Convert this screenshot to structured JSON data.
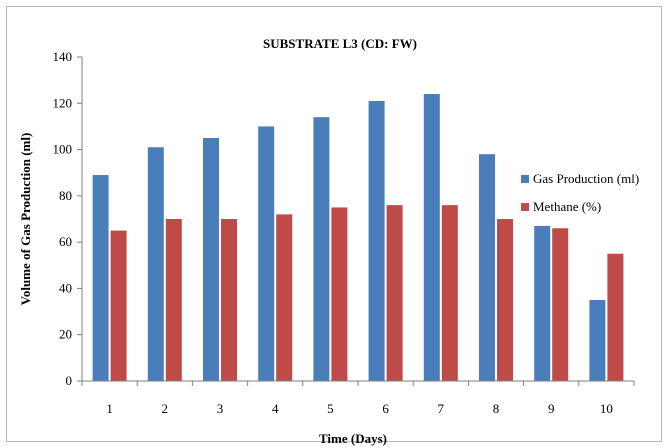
{
  "chart_data": {
    "type": "bar",
    "title": "SUBSTRATE L3 (CD: FW)",
    "xlabel": "Time (Days)",
    "ylabel": "Volume of Gas Production (ml)",
    "categories": [
      "1",
      "2",
      "3",
      "4",
      "5",
      "6",
      "7",
      "8",
      "9",
      "10"
    ],
    "ylim": [
      0,
      140
    ],
    "yticks": [
      "0",
      "20",
      "40",
      "60",
      "80",
      "100",
      "120",
      "140"
    ],
    "grid": false,
    "legend_position": "right",
    "series": [
      {
        "name": "Gas Production (ml)",
        "color": "#4a7ebb",
        "values": [
          89,
          101,
          105,
          110,
          114,
          121,
          124,
          98,
          67,
          35
        ]
      },
      {
        "name": "Methane (%)",
        "color": "#be4b48",
        "values": [
          65,
          70,
          70,
          72,
          75,
          76,
          76,
          70,
          66,
          55
        ]
      }
    ]
  }
}
